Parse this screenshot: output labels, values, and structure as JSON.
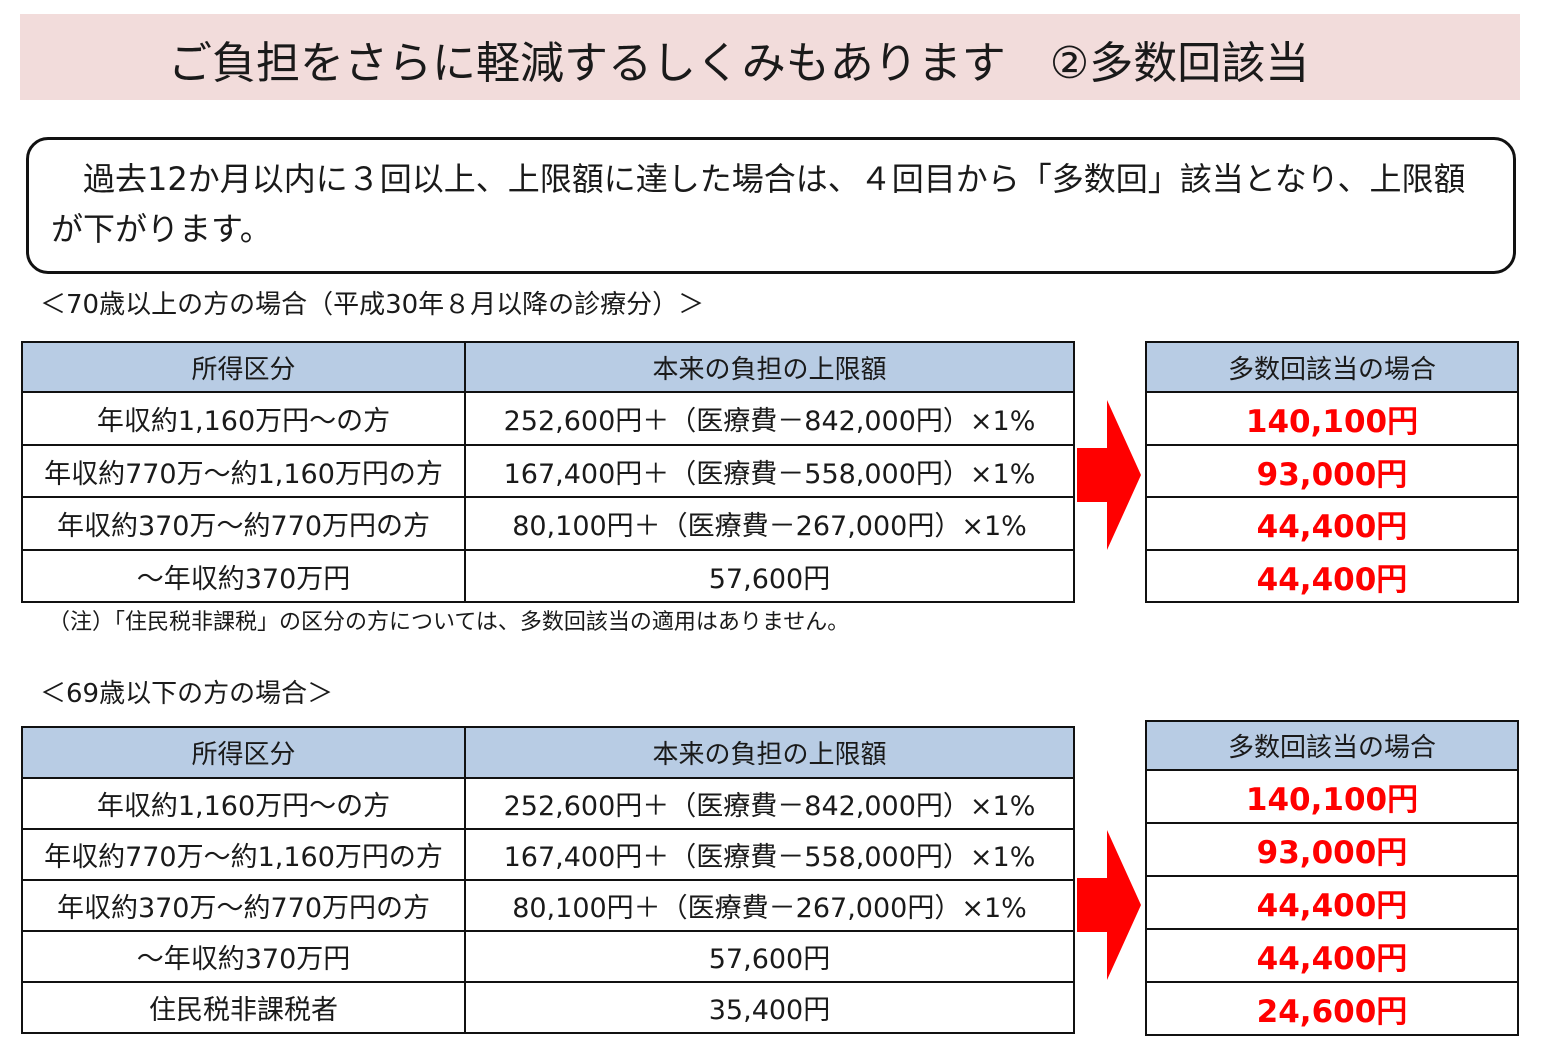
{
  "title": "ご負担をさらに軽減するしくみもあります　②多数回該当",
  "intro": "過去12か月以内に３回以上、上限額に達した場合は、４回目から「多数回」該当となり、上限額が下がります。",
  "section1": {
    "label": "＜70歳以上の方の場合（平成30年８月以降の診療分）＞",
    "headers": [
      "所得区分",
      "本来の負担の上限額"
    ],
    "rows": [
      [
        "年収約1,160万円～の方",
        "252,600円＋（医療費－842,000円）×1%"
      ],
      [
        "年収約770万～約1,160万円の方",
        "167,400円＋（医療費－558,000円）×1%"
      ],
      [
        "年収約370万～約770万円の方",
        "80,100円＋（医療費－267,000円）×1%"
      ],
      [
        "～年収約370万円",
        "57,600円"
      ]
    ],
    "side_header": "多数回該当の場合",
    "side_values": [
      "140,100円",
      "93,000円",
      "44,400円",
      "44,400円"
    ],
    "note": "（注）「住民税非課税」の区分の方については、多数回該当の適用はありません。"
  },
  "section2": {
    "label": "＜69歳以下の方の場合＞",
    "headers": [
      "所得区分",
      "本来の負担の上限額"
    ],
    "rows": [
      [
        "年収約1,160万円～の方",
        "252,600円＋（医療費－842,000円）×1%"
      ],
      [
        "年収約770万～約1,160万円の方",
        "167,400円＋（医療費－558,000円）×1%"
      ],
      [
        "年収約370万～約770万円の方",
        "80,100円＋（医療費－267,000円）×1%"
      ],
      [
        "～年収約370万円",
        "57,600円"
      ],
      [
        "住民税非課税者",
        "35,400円"
      ]
    ],
    "side_header": "多数回該当の場合",
    "side_values": [
      "140,100円",
      "93,000円",
      "44,400円",
      "44,400円",
      "24,600円"
    ]
  },
  "colors": {
    "title_bg": "#f2dcdb",
    "header_bg": "#b8cce4",
    "highlight": "#ff0000",
    "arrow": "#ff0000"
  },
  "icons": [
    "right-arrow-icon"
  ]
}
